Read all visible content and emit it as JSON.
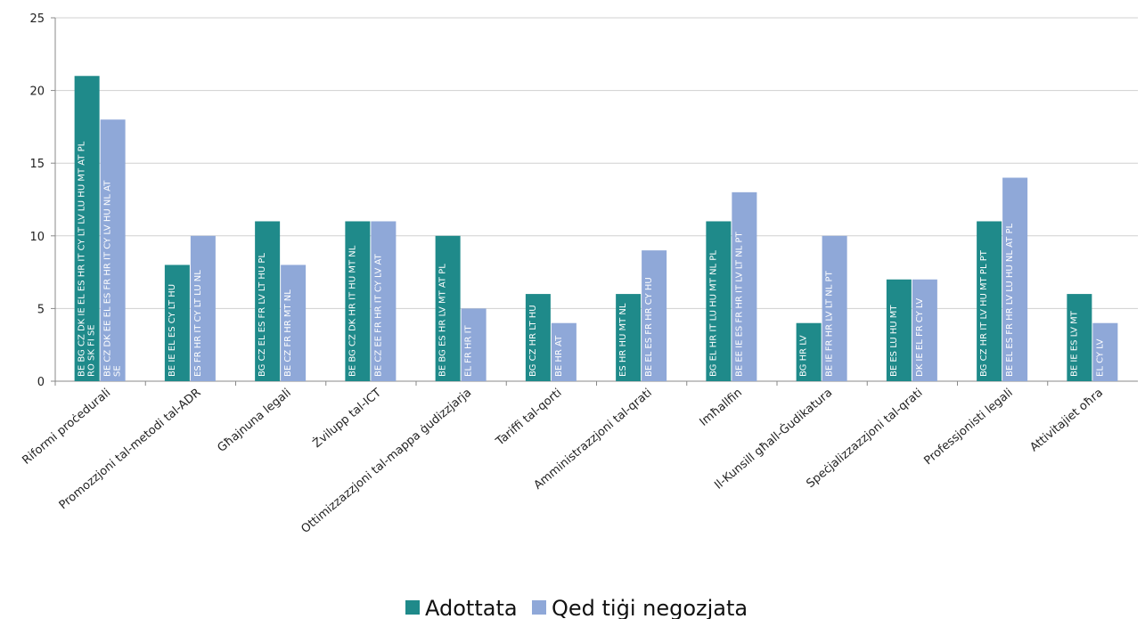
{
  "chart_data": {
    "type": "bar",
    "title": "",
    "xlabel": "",
    "ylabel": "",
    "ylim": [
      0,
      25
    ],
    "yticks": [
      0,
      5,
      10,
      15,
      20,
      25
    ],
    "grid": true,
    "legend_position": "bottom",
    "categories": [
      "Riformi proċedurali",
      "Promozzjoni tal-metodi tal-ADR",
      "Għajnuna legali",
      "Żvilupp tal-ICT",
      "Ottimizzazzjoni tal-mappa ġudizzjarja",
      "Tariffi tal-qorti",
      "Amministrazzjoni tal-qrati",
      "Imħallfin",
      "Il-Kunsill għall-Ġudikatura",
      "Speċjalizzazzjoni tal-qrati",
      "Professjonisti legali",
      "Attivitajiet oħra"
    ],
    "series": [
      {
        "name": "Adottata",
        "color": "#1f8a8a",
        "values": [
          21,
          8,
          11,
          11,
          10,
          6,
          6,
          11,
          4,
          7,
          11,
          6
        ],
        "labels": [
          [
            "BE BG CZ DK IE EL ES HR IT CY LT LV LU HU MT AT PL",
            "RO SK FI SE"
          ],
          [
            "BE IE EL ES CY LT HU"
          ],
          [
            "BG CZ EL ES FR LV LT HU PL"
          ],
          [
            "BE BG CZ DK HR IT HU MT NL"
          ],
          [
            "BE BG ES HR LV MT AT PL"
          ],
          [
            "BG CZ HR LT HU"
          ],
          [
            "ES HR HU MT NL"
          ],
          [
            "BG EL HR IT LU HU MT NL PL"
          ],
          [
            "BG HR LV"
          ],
          [
            "BE ES LU HU MT"
          ],
          [
            "BG CZ HR IT LV HU MT PL PT"
          ],
          [
            "BE IE ES LV MT"
          ]
        ]
      },
      {
        "name": "Qed tiġi negozjata",
        "color": "#8fa8d8",
        "values": [
          18,
          10,
          8,
          11,
          5,
          4,
          9,
          13,
          10,
          7,
          14,
          4
        ],
        "labels": [
          [
            "BE CZ DK EE EL ES FR HR IT CY LV HU NL AT",
            "SE"
          ],
          [
            "ES FR HR IT CY LT LU NL"
          ],
          [
            "BE CZ FR HR MT NL"
          ],
          [
            "BE CZ EE FR HR IT CY LV AT"
          ],
          [
            "EL FR HR IT"
          ],
          [
            "BE HR AT"
          ],
          [
            "BE EL ES FR HR CY HU"
          ],
          [
            "BE EE IE ES FR HR IT LV LT NL PT"
          ],
          [
            "BE IE FR HR LV LT NL PT"
          ],
          [
            "DK IE EL FR CY LV"
          ],
          [
            "BE EL ES FR HR LV LU HU NL AT PL"
          ],
          [
            "EL CY LV"
          ]
        ]
      }
    ]
  }
}
